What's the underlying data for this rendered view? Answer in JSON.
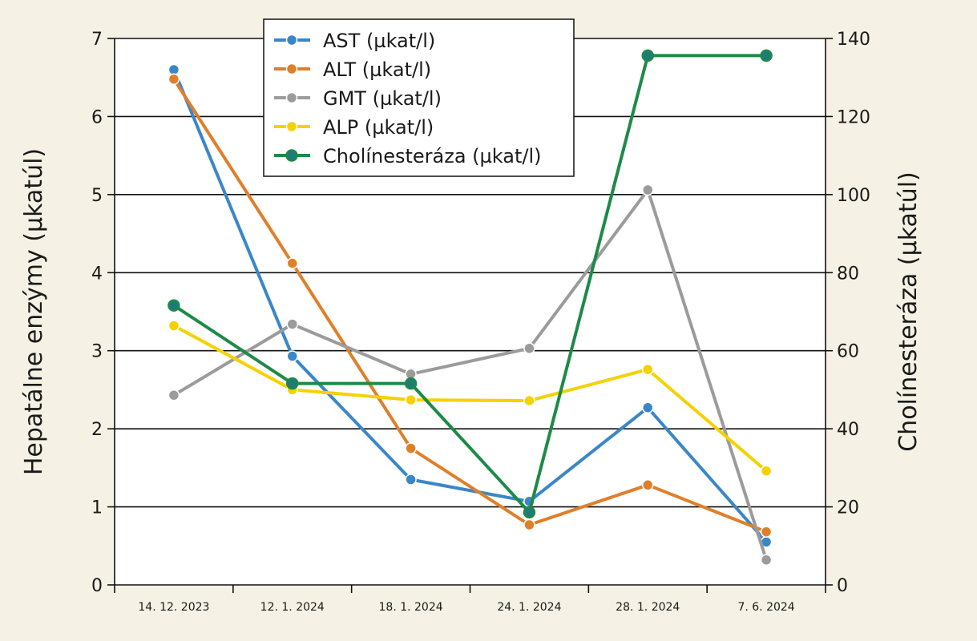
{
  "chart_data": {
    "type": "line",
    "categories": [
      "14. 12. 2023",
      "12. 1. 2024",
      "18. 1. 2024",
      "24. 1. 2024",
      "28. 1. 2024",
      "7. 6. 2024"
    ],
    "ylabel": "Hepatálne enzýmy (µkatúl)",
    "y2label": "Cholínesteráza (µkatúl)",
    "ylim": [
      0,
      7
    ],
    "y2lim": [
      0,
      140
    ],
    "yticks": [
      "0",
      "1",
      "2",
      "3",
      "4",
      "5",
      "6",
      "7"
    ],
    "y2ticks": [
      "0",
      "20",
      "40",
      "60",
      "80",
      "100",
      "120",
      "140"
    ],
    "grid": true,
    "legend_position": "top",
    "series": [
      {
        "name": "AST (µkat/l)",
        "color": "#3a87c8",
        "axis": "left",
        "values": [
          6.6,
          2.93,
          1.35,
          1.07,
          2.27,
          0.55
        ]
      },
      {
        "name": "ALT (µkat/l)",
        "color": "#e07f2a",
        "axis": "left",
        "values": [
          6.48,
          4.12,
          1.75,
          0.77,
          1.28,
          0.68
        ]
      },
      {
        "name": "GMT (µkat/l)",
        "color": "#9b9b9b",
        "axis": "left",
        "values": [
          2.43,
          3.34,
          2.7,
          3.03,
          5.06,
          0.32
        ]
      },
      {
        "name": "ALP (µkat/l)",
        "color": "#f6d100",
        "axis": "left",
        "values": [
          3.32,
          2.5,
          2.37,
          2.36,
          2.76,
          1.46
        ]
      },
      {
        "name": "Cholínesteráza (µkat/l)",
        "color": "#1e8a47",
        "marker_fill": "#1f7a7a",
        "axis": "right",
        "values": [
          71.6,
          51.6,
          51.6,
          18.6,
          135.6,
          135.6
        ]
      }
    ]
  }
}
